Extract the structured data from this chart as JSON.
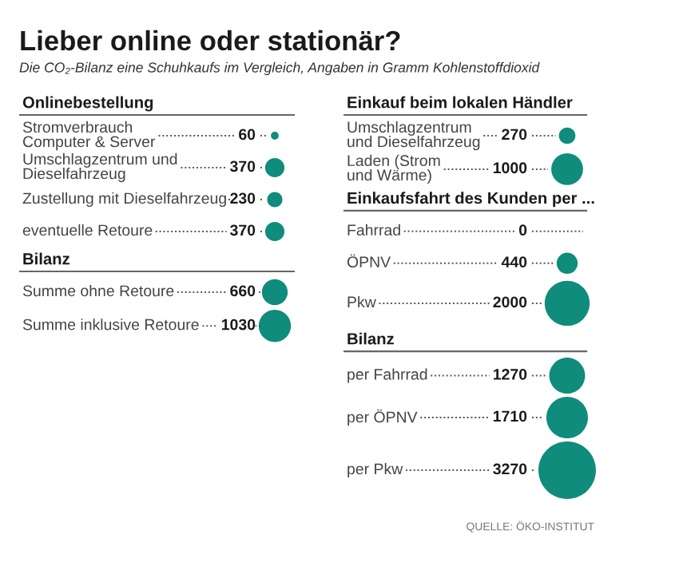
{
  "chart_data": [
    {
      "type": "other",
      "title": "Lieber online oder stationär?",
      "subtitle": "Die CO₂-Bilanz eine Schuhkaufs im Vergleich, Angaben in Gramm Kohlenstoffdioxid",
      "annotations": [
        "QUELLE: ÖKO-INSTITUT"
      ]
    },
    {
      "type": "other",
      "title": "Onlinebestellung",
      "categories": [
        "Stromverbrauch\nComputer & Server",
        "Umschlagzentrum und\nDieselfahrzeug",
        "Zustellung mit Dieselfahrzeug",
        "eventuelle Retoure"
      ],
      "values": [
        60,
        370,
        230,
        370
      ],
      "color": "#0f8c7c",
      "data_labels": true
    },
    {
      "type": "other",
      "title": "Bilanz",
      "categories": [
        "Summe ohne Retoure",
        "Summe inklusive Retoure"
      ],
      "values": [
        660,
        1030
      ],
      "color": "#0f8c7c",
      "data_labels": true
    },
    {
      "type": "other",
      "title": "Einkauf beim lokalen Händler",
      "categories": [
        "Umschlagzentrum\nund Dieselfahrzeug",
        "Laden (Strom\nund Wärme)"
      ],
      "values": [
        270,
        1000
      ],
      "color": "#0f8c7c",
      "data_labels": true
    },
    {
      "type": "other",
      "title": "Einkaufsfahrt des Kunden per ...",
      "categories": [
        "Fahrrad",
        "ÖPNV",
        "Pkw"
      ],
      "values": [
        0,
        440,
        2000
      ],
      "color": "#0f8c7c",
      "data_labels": true
    },
    {
      "type": "other",
      "title": "Bilanz",
      "categories": [
        "per Fahrrad",
        "per ÖPNV",
        "per Pkw"
      ],
      "values": [
        1270,
        1710,
        3270
      ],
      "color": "#0f8c7c",
      "data_labels": true
    }
  ]
}
